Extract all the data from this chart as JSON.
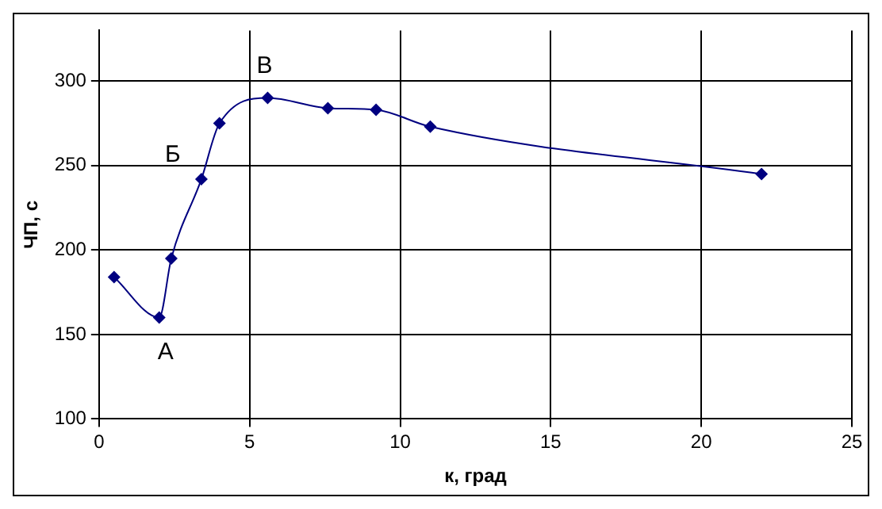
{
  "chart_data": {
    "type": "line",
    "xlabel": "к, град",
    "ylabel": "ЧП, с",
    "x": [
      0.5,
      2,
      2.4,
      3.4,
      4,
      5.6,
      7.6,
      9.2,
      11,
      22
    ],
    "series": [
      {
        "color": "#000080",
        "values": [
          184,
          160,
          195,
          242,
          275,
          290,
          284,
          283,
          273,
          245
        ]
      }
    ],
    "xlim": [
      0,
      25
    ],
    "xticks": [
      0,
      5,
      10,
      15,
      20,
      25
    ],
    "ylim": [
      100,
      330
    ],
    "yticks": [
      100,
      150,
      200,
      250,
      300
    ],
    "grid": true,
    "legend": false,
    "marker": "diamond",
    "line_style": "solid",
    "annotations": [
      {
        "text": "А",
        "x": 2,
        "y": 160
      },
      {
        "text": "Б",
        "x": 3.4,
        "y": 242
      },
      {
        "text": "В",
        "x": 5.6,
        "y": 290
      }
    ]
  }
}
